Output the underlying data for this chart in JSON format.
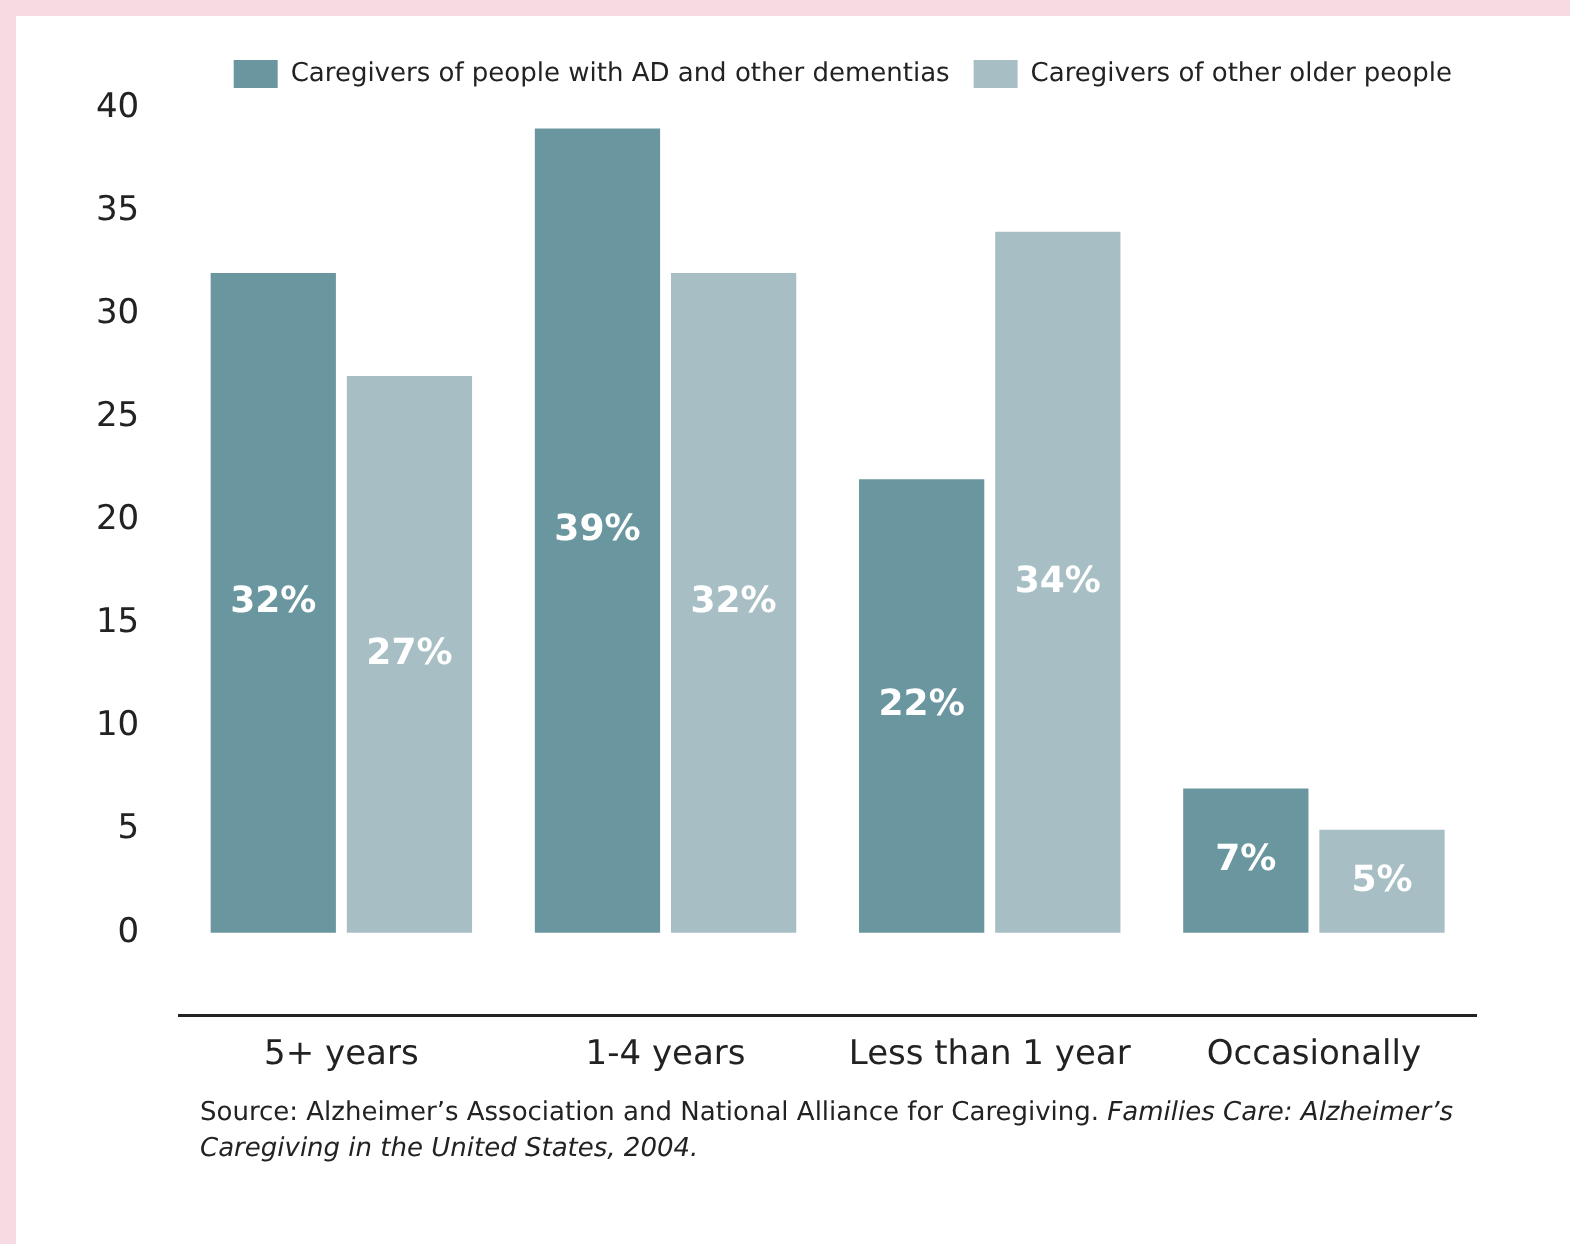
{
  "chart_data": {
    "type": "bar",
    "categories": [
      "5+ years",
      "1-4 years",
      "Less than 1 year",
      "Occasionally"
    ],
    "series": [
      {
        "name": "Caregivers of people with AD and other dementias",
        "color": "#6a979f",
        "values": [
          32,
          39,
          22,
          7
        ],
        "value_labels": [
          "32%",
          "39%",
          "22%",
          "7%"
        ]
      },
      {
        "name": "Caregivers of other older people",
        "color": "#a7bfc4",
        "values": [
          27,
          32,
          34,
          5
        ],
        "value_labels": [
          "27%",
          "32%",
          "34%",
          "5%"
        ]
      }
    ],
    "ylim": [
      -4,
      40
    ],
    "yticks": [
      0,
      5,
      10,
      15,
      20,
      25,
      30,
      35,
      40
    ],
    "grid": false,
    "legend": "top right",
    "annotations": [
      "Source: Alzheimer’s Association and National Alliance for Caregiving.",
      "Families Care: Alzheimer’s Caregiving in the United States, 2004."
    ]
  }
}
